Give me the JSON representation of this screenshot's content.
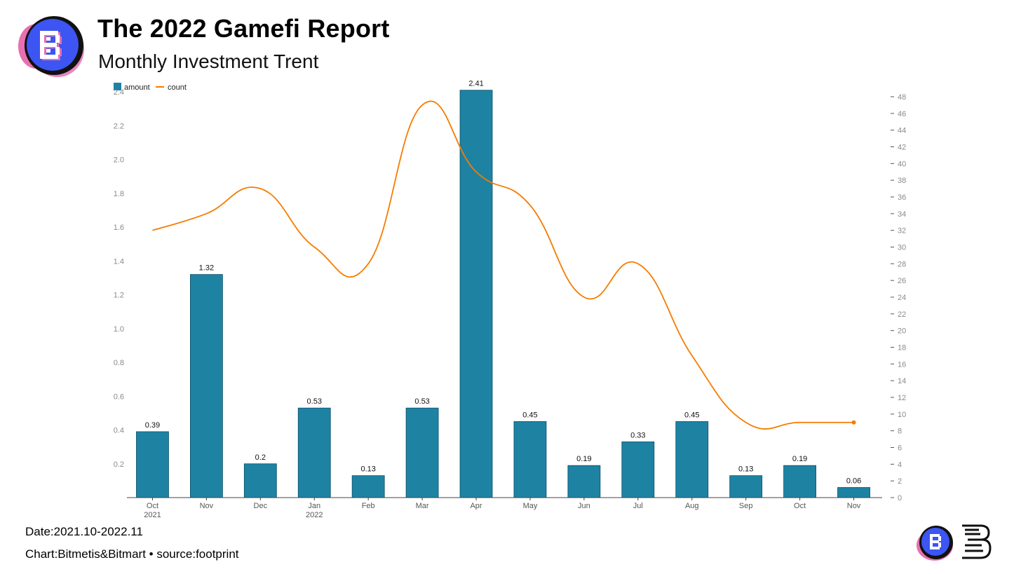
{
  "header": {
    "title": "The 2022 Gamefi Report",
    "subtitle": "Monthly Investment Trent"
  },
  "footer": {
    "date": "Date:2021.10-2022.11",
    "credit": "Chart:Bitmetis&Bitmart • source:footprint"
  },
  "colors": {
    "bar": "#1e82a3",
    "line": "#f57c00",
    "logo_blue": "#3d55f2",
    "logo_pink": "#e86fb0"
  },
  "icons": {
    "brand_logo": "bitmetis-logo-icon",
    "small_logo": "bitmetis-logo-small-icon",
    "bitmart_logo": "bitmart-logo-icon"
  },
  "chart_data": {
    "type": "bar",
    "categories": [
      "Oct 2021",
      "Nov",
      "Dec",
      "Jan 2022",
      "Feb",
      "Mar",
      "Apr",
      "May",
      "Jun",
      "Jul",
      "Aug",
      "Sep",
      "Oct",
      "Nov"
    ],
    "series": [
      {
        "name": "amount",
        "type": "bar",
        "axis": "left",
        "values": [
          0.39,
          1.32,
          0.2,
          0.53,
          0.13,
          0.53,
          2.41,
          0.45,
          0.19,
          0.33,
          0.45,
          0.13,
          0.19,
          0.06
        ],
        "labels": [
          "0.39",
          "1.32",
          "0.2",
          "0.53",
          "0.13",
          "0.53",
          "2.41",
          "0.45",
          "0.19",
          "0.33",
          "0.45",
          "0.13",
          "0.19",
          "0.06"
        ]
      },
      {
        "name": "count",
        "type": "line",
        "axis": "right",
        "values": [
          32,
          34,
          37,
          30,
          28,
          47,
          39,
          35,
          24,
          28,
          17,
          9,
          9,
          9
        ]
      }
    ],
    "y_left": {
      "ylim": [
        0,
        2.5
      ],
      "ticks": [
        0.2,
        0.4,
        0.6,
        0.8,
        1.0,
        1.2,
        1.4,
        1.6,
        1.8,
        2.0,
        2.2,
        2.4
      ],
      "tick_labels": [
        "0.2",
        "0.4",
        "0.6",
        "0.8",
        "1.0",
        "1.2",
        "1.4",
        "1.6",
        "1.8",
        "2.0",
        "2.2",
        "2.4"
      ]
    },
    "y_right": {
      "ylim": [
        0,
        48
      ],
      "ticks": [
        0,
        2,
        4,
        6,
        8,
        10,
        12,
        14,
        16,
        18,
        20,
        22,
        24,
        26,
        28,
        30,
        32,
        34,
        36,
        38,
        40,
        42,
        44,
        46,
        48
      ],
      "tick_labels": [
        "0",
        "2",
        "4",
        "6",
        "8",
        "10",
        "12",
        "14",
        "16",
        "18",
        "20",
        "22",
        "24",
        "26",
        "28",
        "30",
        "32",
        "34",
        "36",
        "38",
        "40",
        "42",
        "44",
        "46",
        "48"
      ]
    },
    "x_tick_labels": [
      [
        "Oct",
        "2021"
      ],
      [
        "Nov"
      ],
      [
        "Dec"
      ],
      [
        "Jan",
        "2022"
      ],
      [
        "Feb"
      ],
      [
        "Mar"
      ],
      [
        "Apr"
      ],
      [
        "May"
      ],
      [
        "Jun"
      ],
      [
        "Jul"
      ],
      [
        "Aug"
      ],
      [
        "Sep"
      ],
      [
        "Oct"
      ],
      [
        "Nov"
      ]
    ],
    "legend": {
      "position": "top-left",
      "items": [
        {
          "name": "amount",
          "kind": "bar"
        },
        {
          "name": "count",
          "kind": "line"
        }
      ]
    },
    "grid": false
  }
}
